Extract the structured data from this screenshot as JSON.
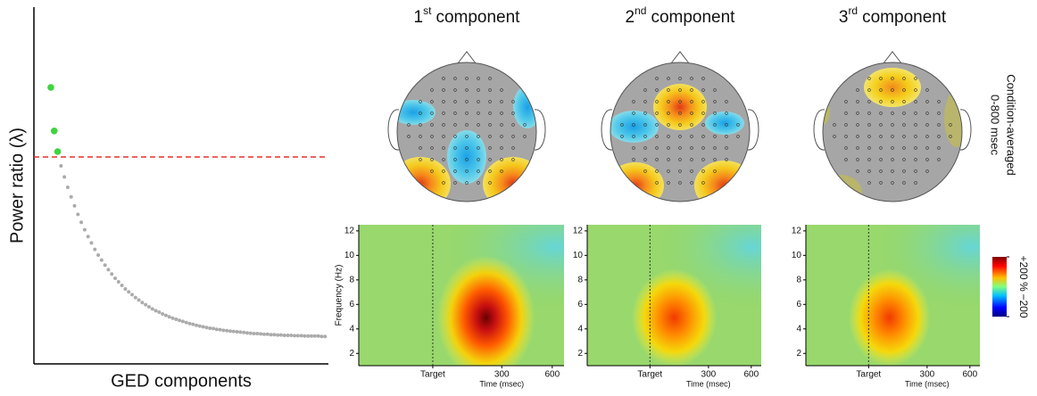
{
  "chart_data": [
    {
      "type": "scatter",
      "xlabel": "GED components",
      "ylabel": "Power ratio (λ)",
      "xlim": [
        -4,
        83
      ],
      "ylim": [
        0,
        100
      ],
      "threshold": 58,
      "threshold_color": "#e8302a",
      "series": [
        {
          "color": "#3fd43f",
          "x": [
            1,
            2,
            3
          ],
          "values": [
            77.5,
            65.3,
            59.5
          ]
        },
        {
          "color": "#ababab",
          "x": [
            4,
            5,
            6,
            7,
            8,
            9,
            10,
            11,
            12,
            13,
            14,
            15,
            16,
            17,
            18,
            19,
            20,
            21,
            22,
            23,
            24,
            25,
            26,
            27,
            28,
            29,
            30,
            31,
            32,
            33,
            34,
            35,
            36,
            37,
            38,
            39,
            40,
            41,
            42,
            43,
            44,
            45,
            46,
            47,
            48,
            49,
            50,
            51,
            52,
            53,
            54,
            55,
            56,
            57,
            58,
            59,
            60,
            61,
            62,
            63,
            64,
            65,
            66,
            67,
            68,
            69,
            70,
            71,
            72,
            73,
            74,
            75,
            76,
            77,
            78,
            79,
            80,
            81,
            82
          ],
          "values": [
            55.5,
            52.4,
            49.5,
            46.8,
            44.3,
            41.9,
            39.7,
            37.6,
            35.7,
            33.9,
            32.1,
            30.5,
            29.1,
            27.7,
            26.4,
            25.2,
            24.0,
            23.0,
            22.0,
            21.0,
            20.2,
            19.4,
            18.6,
            17.9,
            17.2,
            16.6,
            16.0,
            15.4,
            14.9,
            14.5,
            14.0,
            13.6,
            13.2,
            12.8,
            12.5,
            12.2,
            11.9,
            11.6,
            11.3,
            11.1,
            10.8,
            10.6,
            10.4,
            10.2,
            10.0,
            9.9,
            9.7,
            9.6,
            9.4,
            9.3,
            9.2,
            9.1,
            9.0,
            8.9,
            8.8,
            8.7,
            8.6,
            8.5,
            8.5,
            8.4,
            8.3,
            8.3,
            8.2,
            8.2,
            8.1,
            8.1,
            8.0,
            8.0,
            8.0,
            7.9,
            7.9,
            7.9,
            7.8,
            7.8,
            7.8,
            7.8,
            7.8,
            7.7,
            7.7
          ]
        }
      ]
    },
    {
      "type": "topomap",
      "title": [
        "1",
        "st",
        "component"
      ]
    },
    {
      "type": "topomap",
      "title": [
        "2",
        "nd",
        "component"
      ]
    },
    {
      "type": "topomap",
      "title": [
        "3",
        "rd",
        "component"
      ]
    },
    {
      "type": "heatmap",
      "ylabel": "Frequency (Hz)",
      "xlabel": "Time (msec)",
      "xlim": [
        -550,
        670
      ],
      "ylim": [
        1,
        12.5
      ],
      "xticks": [
        {
          "value": -110,
          "label": "Target"
        },
        300,
        600
      ],
      "yticks": [
        2,
        4,
        6,
        8,
        10,
        12
      ],
      "event_line": true
    },
    {
      "type": "heatmap",
      "xlabel": "Time (msec)",
      "xlim": [
        -550,
        670
      ],
      "ylim": [
        1,
        12.5
      ],
      "xticks": [
        {
          "value": -110,
          "label": "Target"
        },
        300,
        600
      ],
      "yticks": [
        2,
        4,
        6,
        8,
        10,
        12
      ],
      "event_line": true
    },
    {
      "type": "heatmap",
      "xlabel": "Time (msec)",
      "xlim": [
        -550,
        670
      ],
      "ylim": [
        1,
        12.5
      ],
      "xticks": [
        {
          "value": -110,
          "label": "Target"
        },
        300,
        600
      ],
      "yticks": [
        2,
        4,
        6,
        8,
        10,
        12
      ],
      "event_line": true
    },
    {
      "type": "colorbar",
      "clim": [
        -200,
        200
      ],
      "label": "%",
      "ticks": [
        {
          "value": 200,
          "label": "+200"
        },
        {
          "value": -200,
          "label": "−200"
        }
      ]
    }
  ],
  "row_label": [
    "0-800 msec",
    "Condition-averaged"
  ]
}
